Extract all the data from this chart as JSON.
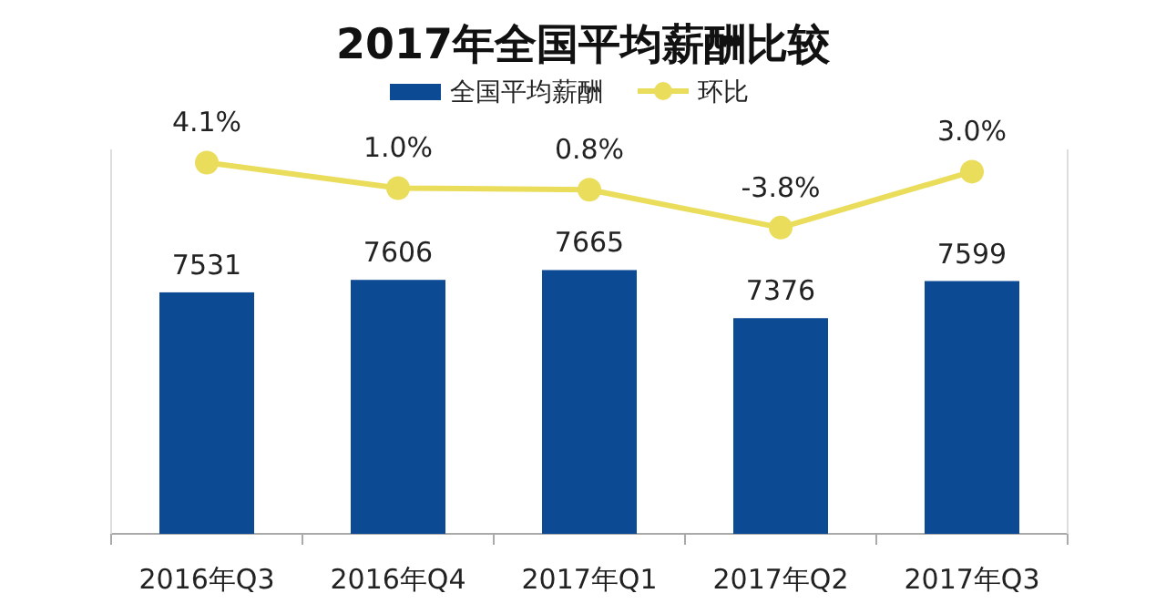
{
  "chart_data": {
    "type": "bar",
    "title": "2017年全国平均薪酬比较",
    "categories": [
      "2016年Q3",
      "2016年Q4",
      "2017年Q1",
      "2017年Q2",
      "2017年Q3"
    ],
    "series": [
      {
        "name": "全国平均薪酬",
        "color": "#0d4a94",
        "values": [
          7531,
          7606,
          7665,
          7376,
          7599
        ],
        "data_labels": true
      },
      {
        "name": "环比",
        "type": "line",
        "axis": "y2",
        "color": "#ebdd5c",
        "values": [
          4.1,
          1.0,
          0.8,
          -3.8,
          3.0
        ],
        "value_labels": [
          "4.1%",
          "1.0%",
          "0.8%",
          "-3.8%",
          "3.0%"
        ]
      }
    ],
    "ylim": [
      6080,
      8390
    ],
    "y2lim": [
      -41,
      5.7
    ],
    "tick_labels": "x",
    "legend": "top",
    "marker": "circle"
  }
}
